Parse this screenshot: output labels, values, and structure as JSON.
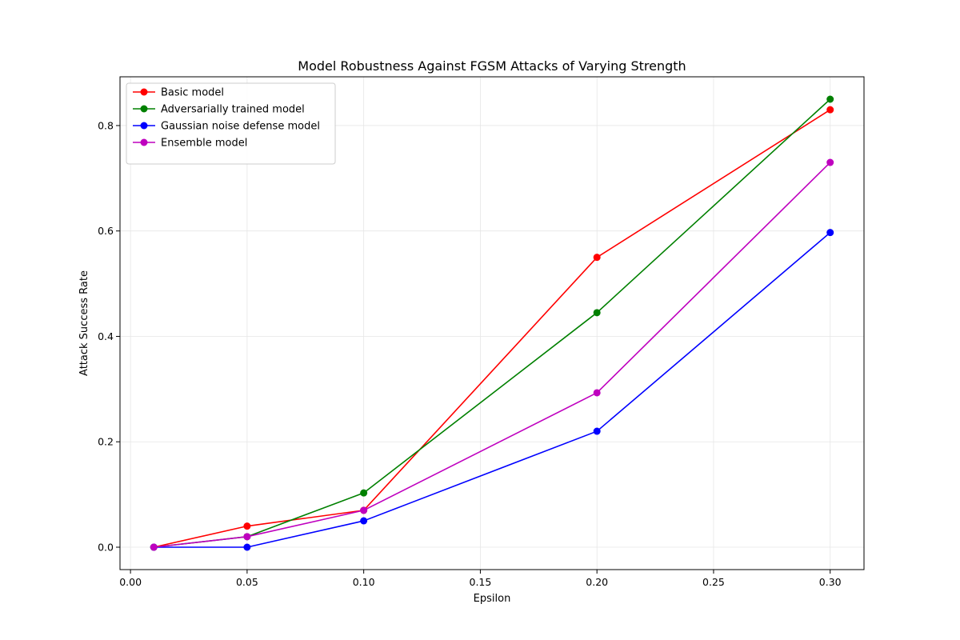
{
  "chart_data": {
    "type": "line",
    "title": "Model Robustness Against FGSM Attacks of Varying Strength",
    "xlabel": "Epsilon",
    "ylabel": "Attack Success Rate",
    "x": [
      0.01,
      0.05,
      0.1,
      0.2,
      0.3
    ],
    "xlim": [
      -0.0045,
      0.3145
    ],
    "ylim": [
      -0.0425,
      0.8925
    ],
    "xticks": [
      0.0,
      0.05,
      0.1,
      0.15,
      0.2,
      0.25,
      0.3
    ],
    "xtick_labels": [
      "0.00",
      "0.05",
      "0.10",
      "0.15",
      "0.20",
      "0.25",
      "0.30"
    ],
    "yticks": [
      0.0,
      0.2,
      0.4,
      0.6,
      0.8
    ],
    "ytick_labels": [
      "0.0",
      "0.2",
      "0.4",
      "0.6",
      "0.8"
    ],
    "grid": true,
    "legend_position": "top-left",
    "series": [
      {
        "name": "Basic model",
        "color": "#ff0000",
        "values": [
          0.0,
          0.04,
          0.07,
          0.55,
          0.83
        ]
      },
      {
        "name": "Adversarially trained model",
        "color": "#008000",
        "values": [
          0.0,
          0.02,
          0.103,
          0.445,
          0.85
        ]
      },
      {
        "name": "Gaussian noise defense model",
        "color": "#0000ff",
        "values": [
          0.0,
          0.0,
          0.05,
          0.22,
          0.597
        ]
      },
      {
        "name": "Ensemble model",
        "color": "#bf00bf",
        "values": [
          0.0,
          0.02,
          0.07,
          0.293,
          0.73
        ]
      }
    ]
  }
}
